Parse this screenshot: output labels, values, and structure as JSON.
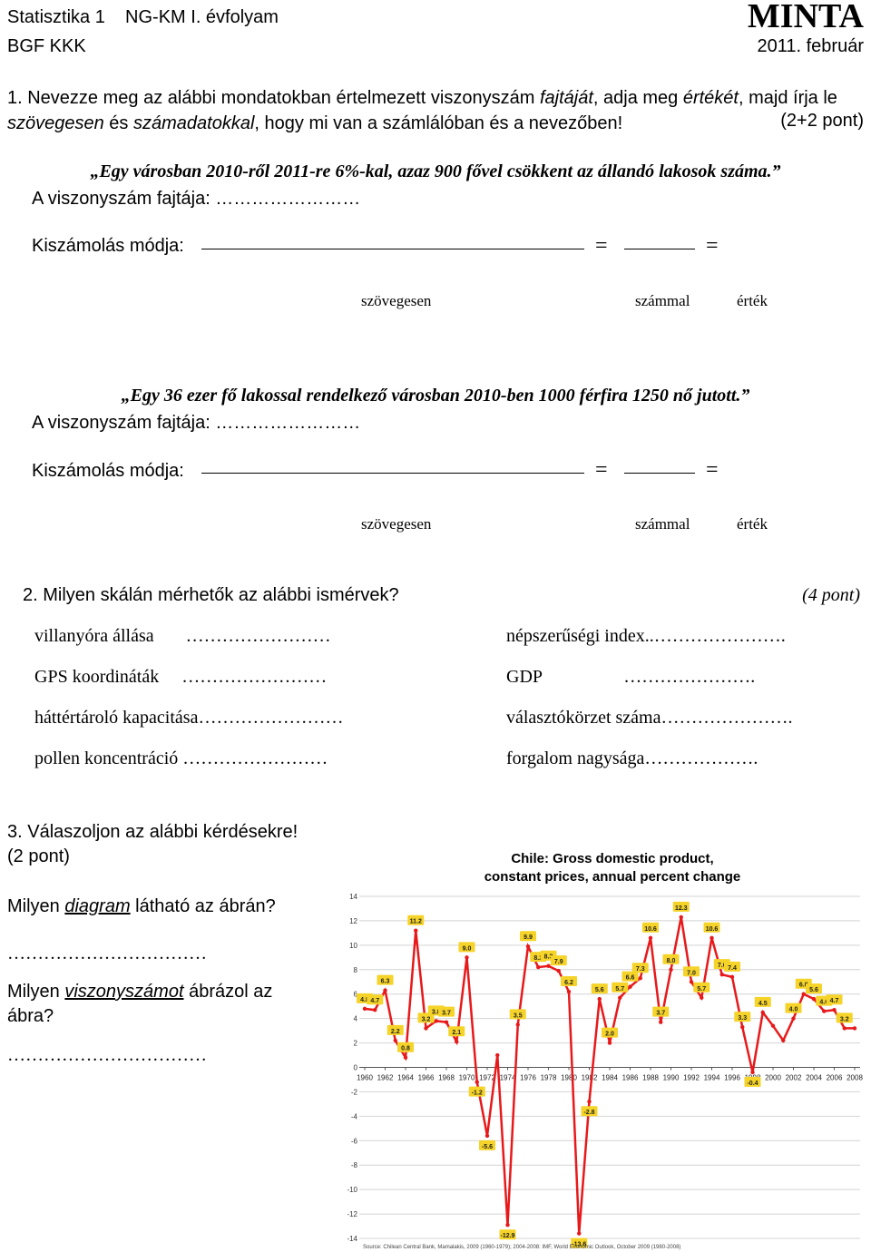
{
  "header": {
    "course": "Statisztika 1    NG-KM I. évfolyam",
    "institute": "BGF KKK",
    "stamp": "MINTA",
    "date": "2011. február"
  },
  "q1": {
    "prompt": [
      "1. Nevezze meg az alábbi mondatokban értelmezett viszonyszám ",
      "fajtáját",
      ", adja meg ",
      "értékét",
      ", majd írja le ",
      "szövegesen",
      " és ",
      "számadatokkal",
      ", hogy mi van a számlálóban és a nevezőben!"
    ],
    "points": "(2+2 pont)",
    "equals": "=",
    "answer_labels": [
      "szövegesen",
      "számmal",
      "érték"
    ],
    "items": [
      {
        "statement": "„Egy városban 2010-ről 2011-re 6%-kal, azaz 900 fővel csökkent az állandó lakosok száma.”",
        "type_label": "A viszonyszám fajtája: ……………………",
        "method_label": "Kiszámolás módja:"
      },
      {
        "statement": "„Egy 36 ezer fő lakossal rendelkező városban 2010-ben 1000 férfira 1250 nő jutott.”",
        "type_label": "A viszonyszám fajtája: ……………………",
        "method_label": "Kiszámolás módja:"
      }
    ]
  },
  "q2": {
    "prompt": "2. Milyen skálán mérhetők az alábbi ismérvek?",
    "points": "(4 pont)",
    "left": [
      "villanyóra állása       ……………………",
      "GPS koordináták     ……………………",
      "háttértároló kapacitása……………………",
      "pollen koncentráció ……………………"
    ],
    "right": [
      "népszerűségi index..………………….",
      "GDP                  ………………….",
      "választókörzet száma………………….",
      "forgalom nagysága………………."
    ]
  },
  "q3": {
    "prompt": "3. Válaszoljon az alábbi kérdésekre!",
    "points": "(2 pont)",
    "question1": [
      "Milyen ",
      "diagram",
      " látható az ábrán?"
    ],
    "answer1": "……………………………",
    "question2": [
      "Milyen ",
      "viszonyszámot",
      " ábrázol az ábra?"
    ],
    "answer2": "……………………………"
  },
  "chart_data": {
    "type": "line",
    "title": "Chile: Gross domestic product, constant prices, annual percent change",
    "source": "Source: Chilean Central Bank, Mamalakis, 2009 (1960-1979); 2004-2008: IMF, World Economic Outlook, October 2009 (1980-2008)",
    "x": [
      1960,
      1961,
      1962,
      1963,
      1964,
      1965,
      1966,
      1967,
      1968,
      1969,
      1970,
      1971,
      1972,
      1973,
      1974,
      1975,
      1976,
      1977,
      1978,
      1979,
      1980,
      1981,
      1982,
      1983,
      1984,
      1985,
      1986,
      1987,
      1988,
      1989,
      1990,
      1991,
      1992,
      1993,
      1994,
      1995,
      1996,
      1997,
      1998,
      1999,
      2000,
      2001,
      2002,
      2003,
      2004,
      2005,
      2006,
      2007,
      2008
    ],
    "values": [
      4.8,
      4.7,
      6.3,
      2.2,
      0.8,
      11.2,
      3.2,
      3.8,
      3.7,
      2.1,
      9.0,
      -1.2,
      -5.6,
      1.0,
      -12.9,
      3.5,
      9.9,
      8.2,
      8.3,
      7.9,
      6.2,
      -13.6,
      -2.8,
      5.6,
      2.0,
      5.7,
      6.6,
      7.3,
      10.6,
      3.7,
      8.0,
      12.3,
      7.0,
      5.7,
      10.6,
      7.6,
      7.4,
      3.3,
      -0.4,
      4.5,
      3.4,
      2.2,
      4.0,
      6.0,
      5.6,
      4.6,
      4.7,
      3.2,
      3.2
    ],
    "value_labels": [
      "4.8",
      "4.7",
      "6.3",
      "2.2",
      "0.8",
      "11.2",
      "3.2",
      "3.8",
      "3.7",
      "2.1",
      "9.0",
      "-1.2",
      "-5.6",
      null,
      "-12.9",
      "3.5",
      "9.9",
      "8.2",
      "8.3",
      "7.9",
      "6.2",
      "-13.6",
      "-2.8",
      "5.6",
      "2.0",
      "5.7",
      "6.6",
      "7.3",
      "10.6",
      "3.7",
      "8.0",
      "12.3",
      "7.0",
      "5.7",
      "10.6",
      "7.6",
      "7.4",
      "3.3",
      "-0.4",
      "4.5",
      null,
      null,
      "4.0",
      "6.0",
      "5.6",
      "4.6",
      "4.7",
      "3.2",
      null
    ],
    "color": "#e8191b",
    "marker_color": "#f5d328",
    "xlim": [
      1960,
      2008
    ],
    "xticks": [
      1960,
      1962,
      1964,
      1966,
      1968,
      1970,
      1972,
      1974,
      1976,
      1978,
      1980,
      1982,
      1984,
      1986,
      1988,
      1990,
      1992,
      1994,
      1996,
      1998,
      2000,
      2002,
      2004,
      2006,
      2008
    ],
    "ylim": [
      -14,
      14
    ],
    "yticks": [
      -14,
      -12,
      -10,
      -8,
      -6,
      -4,
      -2,
      0,
      2,
      4,
      6,
      8,
      10,
      12,
      14
    ],
    "grid": true
  }
}
